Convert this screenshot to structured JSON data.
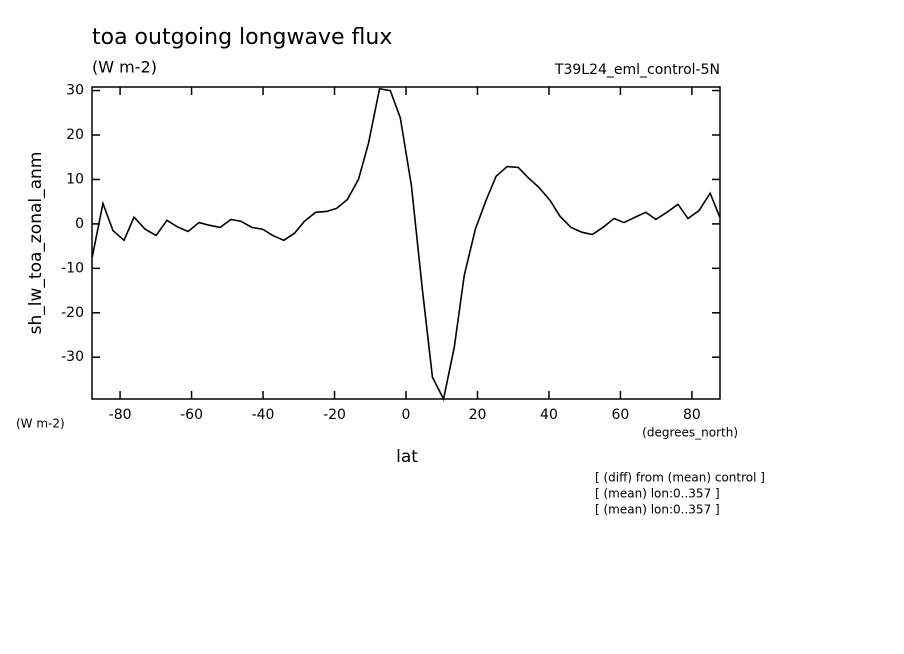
{
  "chart_data": {
    "type": "line",
    "title": "toa outgoing longwave flux",
    "subtitle": "(W m-2)",
    "dataset_label": "T39L24_eml_control-5N",
    "y_label": "sh_lw_toa_zonal_anm",
    "y_units": "(W m-2)",
    "x_label": "lat",
    "x_units": "(degrees_north)",
    "notes": [
      "[ (diff) from (mean) control ]",
      "[ (mean) lon:0..357 ]",
      "[ (mean) lon:0..357 ]"
    ],
    "x": [
      -87.8,
      -84.8,
      -82,
      -78.9,
      -76.1,
      -73,
      -69.9,
      -66.9,
      -64.1,
      -61,
      -57.9,
      -55.1,
      -52,
      -49,
      -46.2,
      -43.1,
      -40.1,
      -37.3,
      -34.2,
      -31.2,
      -28.4,
      -25.3,
      -22.2,
      -19.4,
      -16.4,
      -13.3,
      -10.5,
      -7.4,
      -4.4,
      -1.6,
      1.5,
      4.6,
      7.4,
      10.5,
      13.5,
      16.3,
      19.4,
      22.4,
      25.2,
      28.3,
      31.4,
      34.2,
      37.2,
      40.3,
      43.1,
      46.2,
      49.3,
      52.1,
      55.1,
      58.2,
      61,
      64.1,
      67.1,
      69.9,
      73,
      76.1,
      78.9,
      82,
      85.1,
      87.8
    ],
    "series": [
      {
        "name": "sh_lw_toa_zonal_anm",
        "color": "#000000",
        "values": [
          -7.5,
          4.6,
          -1.5,
          -3.7,
          1.5,
          -1.2,
          -2.6,
          0.8,
          -0.6,
          -1.7,
          0.3,
          -0.3,
          -0.8,
          1,
          0.6,
          -0.8,
          -1.2,
          -2.6,
          -3.7,
          -2.1,
          0.6,
          2.6,
          2.8,
          3.5,
          5.5,
          10,
          18.1,
          30.4,
          30,
          23.9,
          8.7,
          -14.9,
          -34.5,
          -39.4,
          -27.8,
          -11.6,
          -1.2,
          5.3,
          10.7,
          12.9,
          12.7,
          10.4,
          8.2,
          5.3,
          1.7,
          -0.8,
          -1.9,
          -2.4,
          -0.8,
          1.2,
          0.3,
          1.5,
          2.6,
          1,
          2.6,
          4.4,
          1.2,
          3,
          6.9,
          1.5
        ]
      }
    ],
    "xlim": [
      -87.86,
      87.86
    ],
    "ylim": [
      -39.4,
      30.8
    ],
    "xticks": [
      -80,
      -60,
      -40,
      -20,
      0,
      20,
      40,
      60,
      80
    ],
    "yticks": [
      -30,
      -20,
      -10,
      0,
      10,
      20,
      30
    ]
  }
}
